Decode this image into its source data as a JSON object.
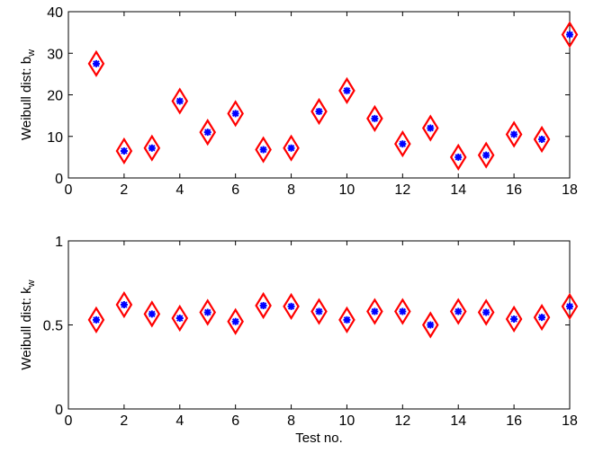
{
  "chart_data": [
    {
      "type": "scatter",
      "title": "",
      "xlabel": "",
      "ylabel": "Weibull dist: b",
      "ylabel_subscript": "w",
      "xlim": [
        0,
        18
      ],
      "ylim": [
        0,
        40
      ],
      "xticks": [
        "0",
        "2",
        "4",
        "6",
        "8",
        "10",
        "12",
        "14",
        "16",
        "18"
      ],
      "yticks": [
        "0",
        "10",
        "20",
        "30",
        "40"
      ],
      "grid": false,
      "marker_colors": {
        "diamond": "#ff0000",
        "star": "#0000ff"
      },
      "x": [
        1,
        2,
        3,
        4,
        5,
        6,
        7,
        8,
        9,
        10,
        11,
        12,
        13,
        14,
        15,
        16,
        17,
        18
      ],
      "y": [
        27.5,
        6.5,
        7.2,
        18.5,
        11,
        15.5,
        6.8,
        7.2,
        16,
        21,
        14.3,
        8.2,
        12,
        5,
        5.5,
        10.5,
        9.3,
        34.5
      ]
    },
    {
      "type": "scatter",
      "title": "",
      "xlabel": "Test no.",
      "ylabel": "Weibull dist: k",
      "ylabel_subscript": "w",
      "xlim": [
        0,
        18
      ],
      "ylim": [
        0,
        1
      ],
      "xticks": [
        "0",
        "2",
        "4",
        "6",
        "8",
        "10",
        "12",
        "14",
        "16",
        "18"
      ],
      "yticks": [
        "0",
        "0.5",
        "1"
      ],
      "grid": false,
      "marker_colors": {
        "diamond": "#ff0000",
        "star": "#0000ff"
      },
      "x": [
        1,
        2,
        3,
        4,
        5,
        6,
        7,
        8,
        9,
        10,
        11,
        12,
        13,
        14,
        15,
        16,
        17,
        18
      ],
      "y": [
        0.53,
        0.62,
        0.565,
        0.54,
        0.575,
        0.52,
        0.615,
        0.61,
        0.58,
        0.53,
        0.58,
        0.58,
        0.5,
        0.58,
        0.575,
        0.535,
        0.545,
        0.61
      ]
    }
  ]
}
